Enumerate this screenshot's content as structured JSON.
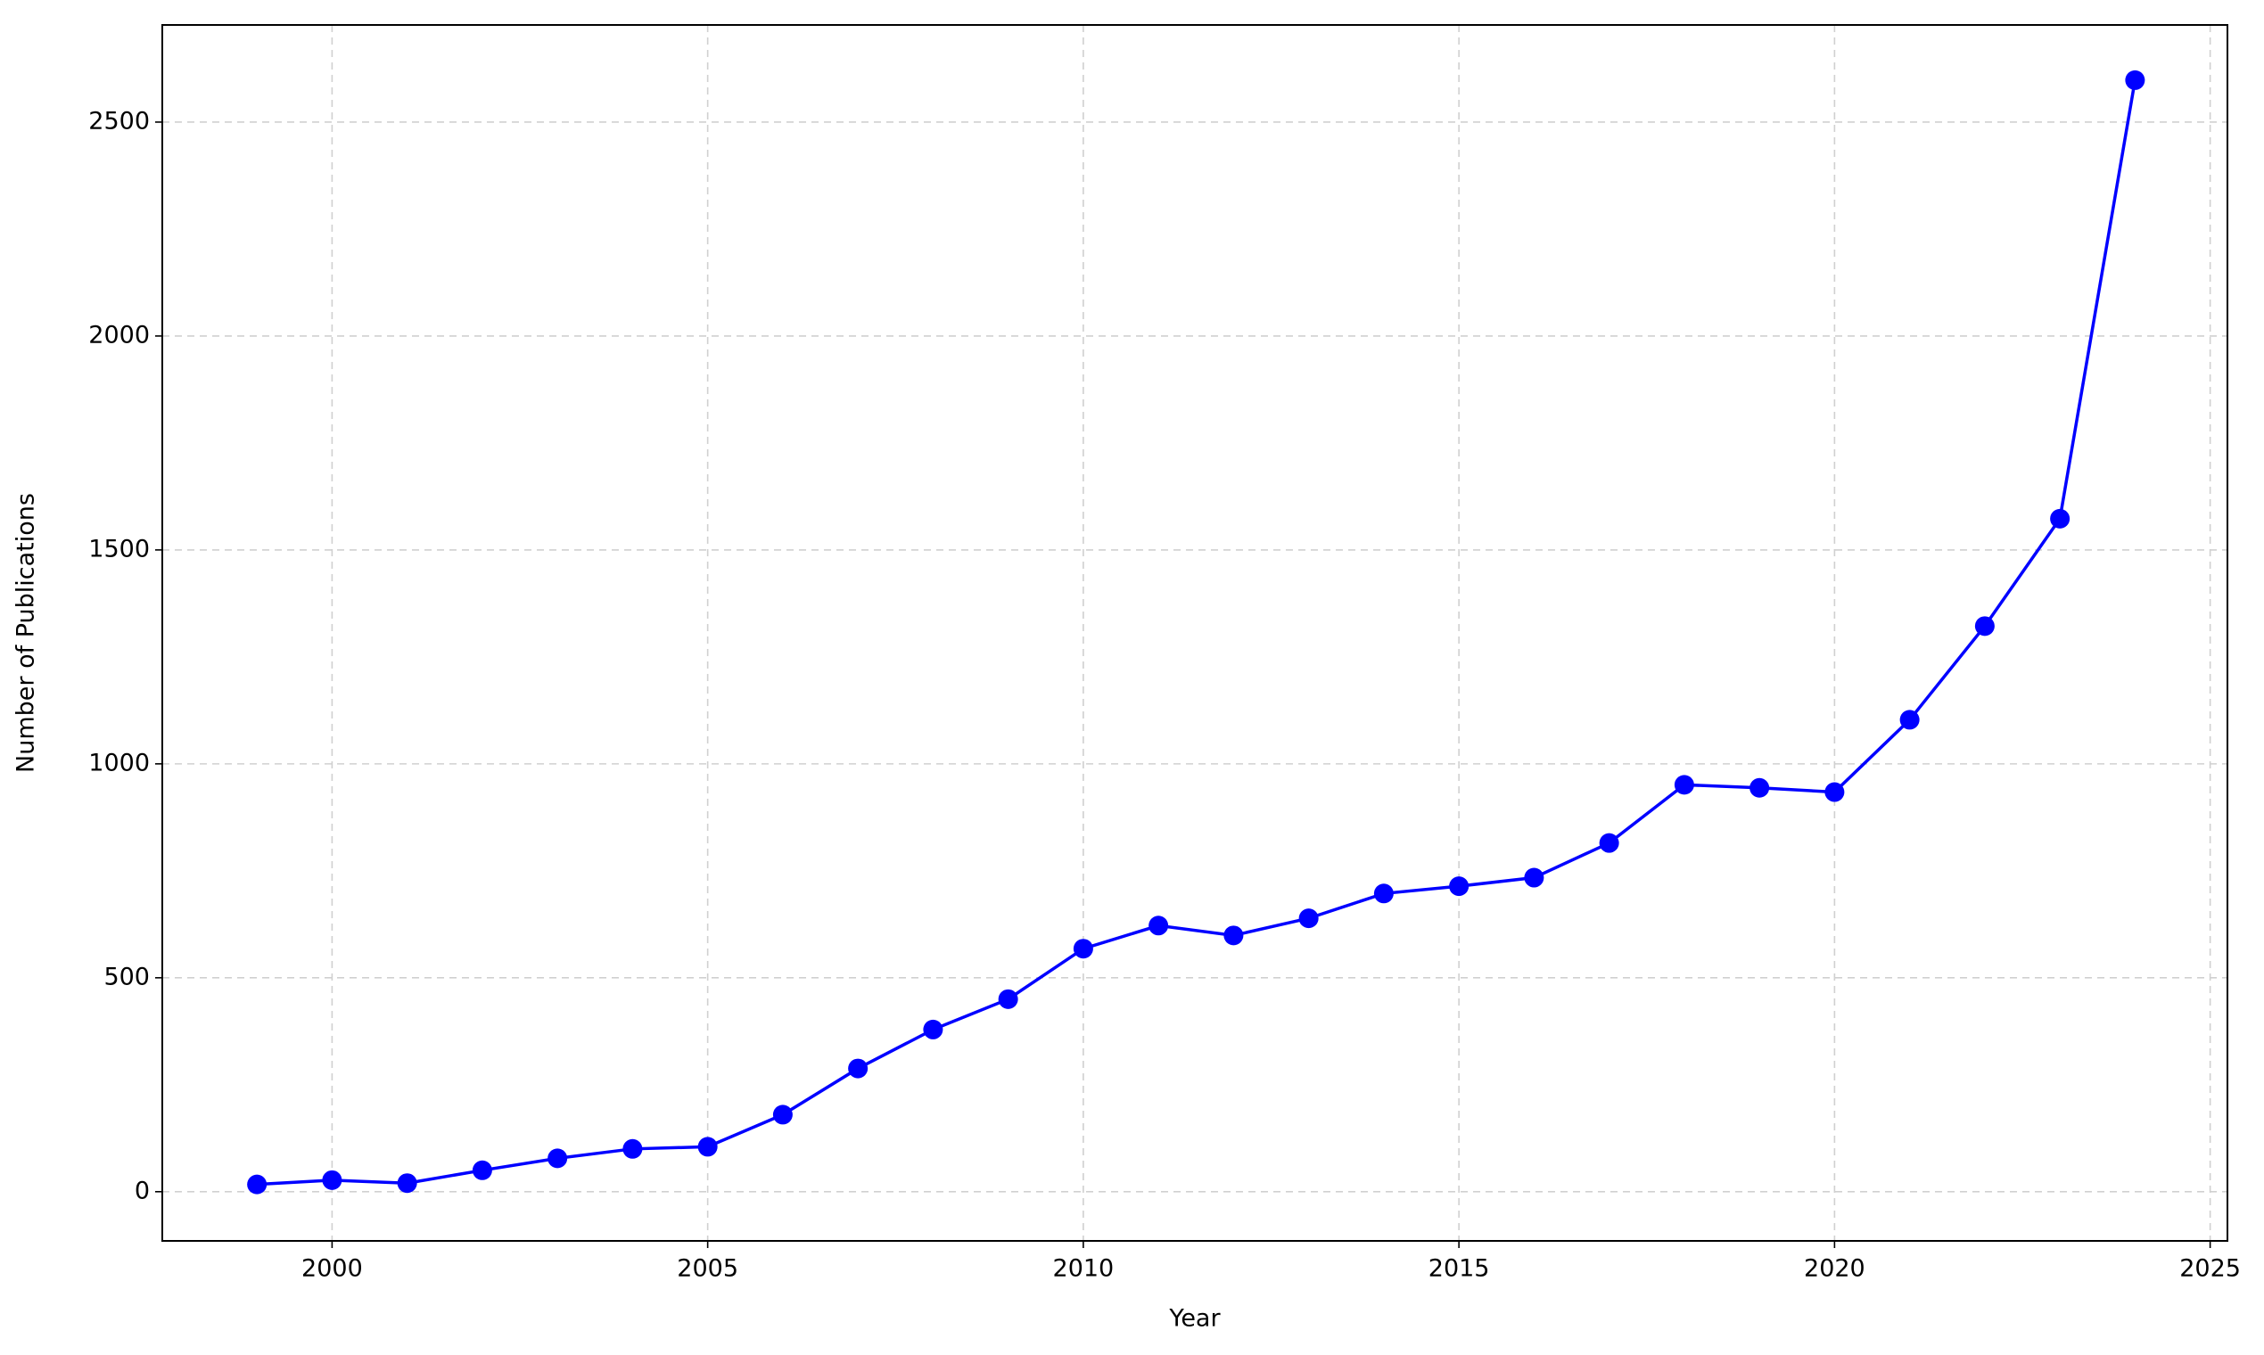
{
  "chart_data": {
    "type": "line",
    "x_label": "Year",
    "y_label": "Number of Publications",
    "x": [
      1999,
      2000,
      2001,
      2002,
      2003,
      2004,
      2005,
      2006,
      2007,
      2008,
      2009,
      2010,
      2011,
      2012,
      2013,
      2014,
      2015,
      2016,
      2017,
      2018,
      2019,
      2020,
      2021,
      2022,
      2023,
      2024
    ],
    "series": [
      {
        "name": "Publications",
        "color": "#0000ff",
        "values": [
          17,
          27,
          20,
          50,
          78,
          100,
          105,
          180,
          288,
          379,
          450,
          568,
          622,
          599,
          639,
          697,
          714,
          734,
          815,
          951,
          944,
          934,
          1103,
          1322,
          1573,
          2598
        ]
      }
    ],
    "xlim": [
      1997.74,
      2025.23
    ],
    "xticks": [
      2000,
      2005,
      2010,
      2015,
      2020,
      2025
    ],
    "ylim": [
      -115,
      2727
    ],
    "yticks": [
      0,
      500,
      1000,
      1500,
      2000,
      2500
    ],
    "grid": true
  }
}
